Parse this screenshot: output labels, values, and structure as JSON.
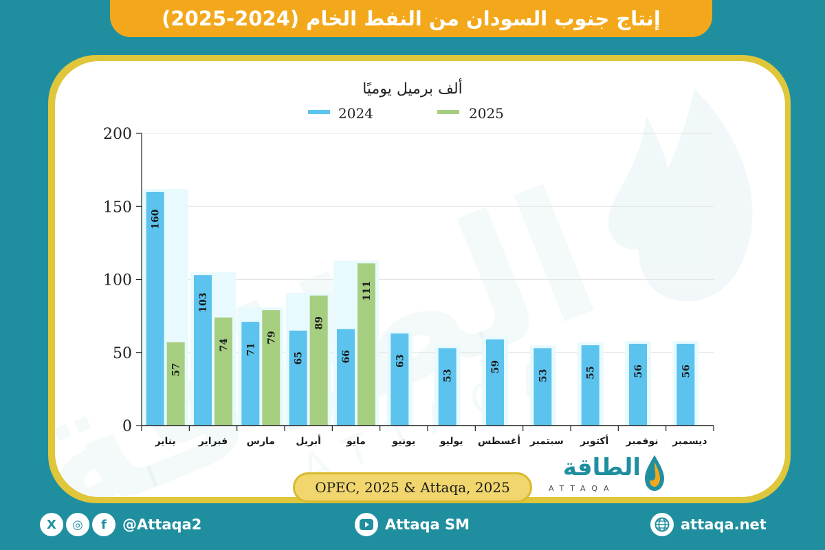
{
  "header": {
    "title": "إنتاج جنوب السودان من النفط الخام (2024-2025)"
  },
  "chart_data": {
    "type": "bar",
    "unit_label": "ألف برميل يوميًا",
    "categories": [
      "يناير",
      "فبراير",
      "مارس",
      "أبريل",
      "مايو",
      "يونيو",
      "يوليو",
      "أغسطس",
      "سبتمبر",
      "أكتوبر",
      "نوفمبر",
      "ديسمبر"
    ],
    "series": [
      {
        "name": "2024",
        "color": "#5cc3ee",
        "values": [
          160,
          103,
          71,
          65,
          66,
          63,
          53,
          59,
          53,
          55,
          56,
          56
        ]
      },
      {
        "name": "2025",
        "color": "#a6ce80",
        "values": [
          57,
          74,
          79,
          89,
          111,
          null,
          null,
          null,
          null,
          null,
          null,
          null
        ]
      }
    ],
    "ylim": [
      0,
      200
    ],
    "yticks": [
      0,
      50,
      100,
      150,
      200
    ],
    "grid": true,
    "legend_position": "top-center"
  },
  "source": {
    "text": "OPEC, 2025 & Attaqa, 2025"
  },
  "logo": {
    "name": "الطاقة",
    "subtitle": "ATTAQA"
  },
  "watermark": {
    "text": "الطاقة",
    "subtitle": "ATTAQA"
  },
  "footer": {
    "social_handle": "@Attaqa2",
    "youtube_label": "Attaqa SM",
    "website": "attaqa.net",
    "icons": {
      "x": "X",
      "instagram": "◎",
      "facebook": "f"
    }
  }
}
